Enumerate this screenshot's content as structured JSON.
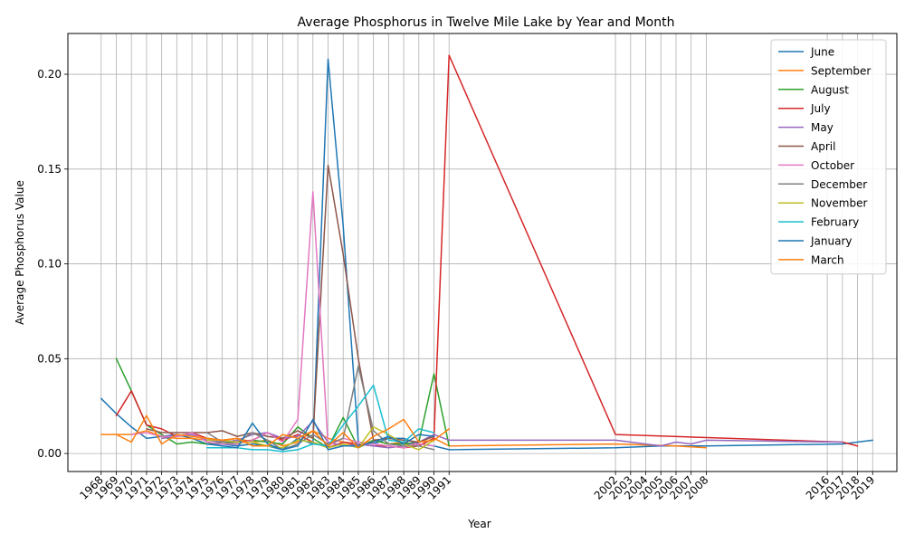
{
  "chart_data": {
    "type": "line",
    "title": "Average Phosphorus in Twelve Mile Lake by Year and Month",
    "xlabel": "Year",
    "ylabel": "Average Phosphorus Value",
    "xlim": [
      1965.8,
      2020.6
    ],
    "ylim": [
      -0.0095,
      0.2215
    ],
    "grid": true,
    "legend_position": "top-right",
    "yticks": [
      "0.00",
      "0.05",
      "0.10",
      "0.15",
      "0.20"
    ],
    "ytick_values": [
      0,
      0.05,
      0.1,
      0.15,
      0.2
    ],
    "xticks": [
      "1968",
      "1969",
      "1970",
      "1971",
      "1972",
      "1973",
      "1974",
      "1975",
      "1976",
      "1977",
      "1978",
      "1979",
      "1980",
      "1981",
      "1982",
      "1983",
      "1984",
      "1985",
      "1986",
      "1987",
      "1988",
      "1989",
      "1990",
      "1991",
      "2002",
      "2003",
      "2004",
      "2005",
      "2006",
      "2007",
      "2008",
      "2016",
      "2017",
      "2018",
      "2019"
    ],
    "xtick_values": [
      1968,
      1969,
      1970,
      1971,
      1972,
      1973,
      1974,
      1975,
      1976,
      1977,
      1978,
      1979,
      1980,
      1981,
      1982,
      1983,
      1984,
      1985,
      1986,
      1987,
      1988,
      1989,
      1990,
      1991,
      2002,
      2003,
      2004,
      2005,
      2006,
      2007,
      2008,
      2016,
      2017,
      2018,
      2019
    ],
    "series": [
      {
        "name": "June",
        "color": "#1f77b4",
        "x": [
          1968,
          1969,
          1970,
          1971,
          1972,
          1973,
          1974,
          1975,
          1976,
          1977,
          1978,
          1979,
          1980,
          1981,
          1982,
          1983,
          1984,
          1985,
          1986,
          1987,
          1988,
          1989,
          1990,
          1991,
          2002,
          2005,
          2008,
          2017,
          2019
        ],
        "y": [
          0.029,
          0.021,
          0.014,
          0.008,
          0.009,
          0.01,
          0.008,
          0.005,
          0.005,
          0.004,
          0.005,
          0.004,
          0.002,
          0.008,
          0.005,
          0.208,
          0.12,
          0.006,
          0.005,
          0.008,
          0.008,
          0.005,
          0.004,
          0.002,
          0.003,
          0.004,
          0.004,
          0.005,
          0.007
        ]
      },
      {
        "name": "September",
        "color": "#ff7f0e",
        "x": [
          1968,
          1969,
          1970,
          1971,
          1972,
          1973,
          1974,
          1975,
          1976,
          1977,
          1978,
          1979,
          1980,
          1981,
          1982,
          1983,
          1984,
          1985,
          1986,
          1987,
          1988,
          1989,
          1990,
          1991,
          2002,
          2006,
          2008
        ],
        "y": [
          0.01,
          0.01,
          0.01,
          0.012,
          0.009,
          0.008,
          0.008,
          0.007,
          0.007,
          0.008,
          0.006,
          0.007,
          0.004,
          0.006,
          0.012,
          0.008,
          0.006,
          0.004,
          0.007,
          0.005,
          0.006,
          0.004,
          0.008,
          0.004,
          0.005,
          0.004,
          0.003
        ]
      },
      {
        "name": "August",
        "color": "#2ca02c",
        "x": [
          1969,
          1970,
          1971,
          1972,
          1973,
          1974,
          1975,
          1976,
          1977,
          1978,
          1979,
          1980,
          1981,
          1982,
          1983,
          1984,
          1985,
          1986,
          1987,
          1988,
          1989,
          1990,
          1991
        ],
        "y": [
          0.05,
          0.033,
          0.015,
          0.01,
          0.005,
          0.006,
          0.005,
          0.006,
          0.005,
          0.007,
          0.006,
          0.005,
          0.014,
          0.008,
          0.003,
          0.019,
          0.003,
          0.007,
          0.005,
          0.005,
          0.006,
          0.042,
          0.004
        ]
      },
      {
        "name": "July",
        "color": "#d62728",
        "x": [
          1969,
          1970,
          1971,
          1972,
          1973,
          1974,
          1975,
          1976,
          1977,
          1978,
          1979,
          1980,
          1981,
          1982,
          1983,
          1984,
          1985,
          1986,
          1987,
          1988,
          1989,
          1990,
          1991,
          2002,
          2017,
          2018
        ],
        "y": [
          0.02,
          0.033,
          0.015,
          0.013,
          0.009,
          0.011,
          0.008,
          0.007,
          0.006,
          0.007,
          0.011,
          0.007,
          0.01,
          0.006,
          0.003,
          0.006,
          0.005,
          0.004,
          0.004,
          0.003,
          0.004,
          0.008,
          0.21,
          0.01,
          0.006,
          0.004
        ]
      },
      {
        "name": "May",
        "color": "#9467bd",
        "x": [
          1972,
          1973,
          1974,
          1975,
          1976,
          1977,
          1978,
          1979,
          1980,
          1981,
          1982,
          1983,
          1984,
          1985,
          1986,
          1987,
          1988,
          1989,
          1990,
          1991,
          2002,
          2004,
          2005,
          2006,
          2007,
          2008,
          2017
        ],
        "y": [
          0.008,
          0.009,
          0.01,
          0.007,
          0.006,
          0.007,
          0.01,
          0.011,
          0.008,
          0.009,
          0.017,
          0.006,
          0.004,
          0.005,
          0.004,
          0.003,
          0.004,
          0.006,
          0.01,
          0.007,
          0.007,
          0.005,
          0.004,
          0.006,
          0.005,
          0.007,
          0.006
        ]
      },
      {
        "name": "April",
        "color": "#8c564b",
        "x": [
          1971,
          1972,
          1973,
          1974,
          1975,
          1976,
          1977,
          1978,
          1979,
          1980,
          1981,
          1982,
          1983,
          1984,
          1985,
          1986,
          1987,
          1988,
          1989,
          1990
        ],
        "y": [
          0.013,
          0.011,
          0.011,
          0.011,
          0.011,
          0.012,
          0.009,
          0.011,
          0.009,
          0.008,
          0.012,
          0.008,
          0.152,
          0.105,
          0.05,
          0.007,
          0.008,
          0.007,
          0.006,
          0.009
        ]
      },
      {
        "name": "October",
        "color": "#e377c2",
        "x": [
          1970,
          1971,
          1972,
          1973,
          1974,
          1975,
          1976,
          1977,
          1978,
          1979,
          1980,
          1981,
          1982,
          1983,
          1984,
          1985,
          1986,
          1987,
          1988,
          1989,
          1990
        ],
        "y": [
          0.01,
          0.011,
          0.009,
          0.009,
          0.011,
          0.006,
          0.005,
          0.005,
          0.007,
          0.011,
          0.006,
          0.018,
          0.138,
          0.004,
          0.008,
          0.006,
          0.005,
          0.004,
          0.003,
          0.005,
          0.004
        ]
      },
      {
        "name": "December",
        "color": "#7f7f7f",
        "x": [
          1975,
          1976,
          1977,
          1978,
          1979,
          1980,
          1981,
          1982,
          1983,
          1984,
          1985,
          1986,
          1987,
          1988,
          1989,
          1990
        ],
        "y": [
          0.011,
          0.006,
          0.006,
          0.011,
          0.007,
          0.002,
          0.005,
          0.01,
          0.005,
          0.008,
          0.046,
          0.012,
          0.005,
          0.004,
          0.004,
          0.002
        ]
      },
      {
        "name": "November",
        "color": "#bcbd22",
        "x": [
          1975,
          1976,
          1977,
          1978,
          1979,
          1980,
          1981,
          1982,
          1983,
          1984,
          1985,
          1986,
          1987,
          1988,
          1989,
          1990
        ],
        "y": [
          0.007,
          0.007,
          0.006,
          0.006,
          0.004,
          0.003,
          0.007,
          0.006,
          0.003,
          0.005,
          0.003,
          0.014,
          0.01,
          0.005,
          0.002,
          0.007
        ]
      },
      {
        "name": "February",
        "color": "#17becf",
        "x": [
          1975,
          1976,
          1977,
          1978,
          1979,
          1980,
          1981,
          1982,
          1983,
          1984,
          1985,
          1986,
          1987,
          1988,
          1989,
          1990
        ],
        "y": [
          0.003,
          0.003,
          0.003,
          0.002,
          0.002,
          0.001,
          0.002,
          0.005,
          0.004,
          0.015,
          0.025,
          0.036,
          0.007,
          0.006,
          0.013,
          0.011
        ]
      },
      {
        "name": "January",
        "color": "#1f77b4",
        "x": [
          1975,
          1976,
          1977,
          1978,
          1979,
          1980,
          1981,
          1982,
          1983,
          1984,
          1985,
          1986,
          1987,
          1988,
          1989,
          1990
        ],
        "y": [
          0.005,
          0.004,
          0.003,
          0.016,
          0.005,
          0.002,
          0.004,
          0.018,
          0.002,
          0.004,
          0.004,
          0.006,
          0.009,
          0.005,
          0.01,
          0.009
        ]
      },
      {
        "name": "March",
        "color": "#ff7f0e",
        "x": [
          1969,
          1970,
          1971,
          1972,
          1973,
          1974,
          1975,
          1976,
          1977,
          1978,
          1979,
          1980,
          1981,
          1982,
          1983,
          1984,
          1985,
          1986,
          1987,
          1988,
          1989,
          1990,
          1991
        ],
        "y": [
          0.01,
          0.006,
          0.02,
          0.005,
          0.01,
          0.009,
          0.008,
          0.007,
          0.008,
          0.004,
          0.004,
          0.01,
          0.008,
          0.012,
          0.004,
          0.011,
          0.003,
          0.009,
          0.013,
          0.018,
          0.006,
          0.007,
          0.013
        ]
      }
    ]
  }
}
